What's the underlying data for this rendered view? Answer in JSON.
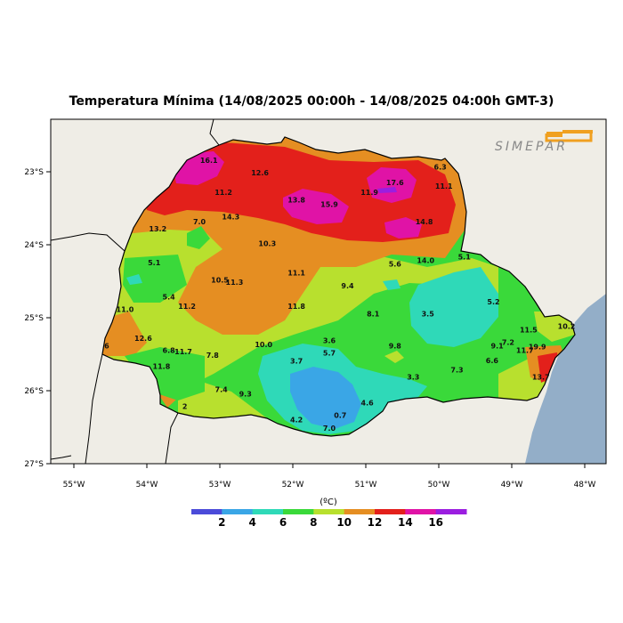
{
  "title": "Temperatura Mínima (14/08/2025 00:00h - 14/08/2025 04:00h GMT-3)",
  "logo_text": "SIMEPAR",
  "colors": {
    "ocean": "#93aec8",
    "land_outside": "#efede6",
    "border": "#000000",
    "bins": [
      "#4b4bd9",
      "#3aa6e6",
      "#2fd9b8",
      "#3ad93a",
      "#b8e02e",
      "#e58e22",
      "#e3201b",
      "#e013a6",
      "#9b1ee0"
    ]
  },
  "x_ticks": [
    "55°W",
    "54°W",
    "53°W",
    "52°W",
    "51°W",
    "50°W",
    "49°W",
    "48°W"
  ],
  "y_ticks": [
    "23°S",
    "24°S",
    "25°S",
    "26°S",
    "27°S"
  ],
  "colorbar": {
    "unit": "(ºC)",
    "labels": [
      "2",
      "4",
      "6",
      "8",
      "10",
      "12",
      "14",
      "16"
    ]
  },
  "map_values": [
    {
      "t": "16.1",
      "lon": -53.15,
      "lat": -22.88
    },
    {
      "t": "12.6",
      "lon": -52.45,
      "lat": -23.05
    },
    {
      "t": "11.2",
      "lon": -52.95,
      "lat": -23.32
    },
    {
      "t": "13.8",
      "lon": -51.95,
      "lat": -23.42
    },
    {
      "t": "15.9",
      "lon": -51.5,
      "lat": -23.48
    },
    {
      "t": "11.9",
      "lon": -50.95,
      "lat": -23.32
    },
    {
      "t": "17.6",
      "lon": -50.6,
      "lat": -23.18
    },
    {
      "t": "6.3",
      "lon": -49.98,
      "lat": -22.97
    },
    {
      "t": "11.1",
      "lon": -49.93,
      "lat": -23.23
    },
    {
      "t": "14.3",
      "lon": -52.85,
      "lat": -23.65
    },
    {
      "t": "14.8",
      "lon": -50.2,
      "lat": -23.72
    },
    {
      "t": "13.2",
      "lon": -53.85,
      "lat": -23.82
    },
    {
      "t": "7.0",
      "lon": -53.28,
      "lat": -23.72
    },
    {
      "t": "10.3",
      "lon": -52.35,
      "lat": -24.02
    },
    {
      "t": "14.0",
      "lon": -50.18,
      "lat": -24.25
    },
    {
      "t": "5.6",
      "lon": -50.6,
      "lat": -24.3
    },
    {
      "t": "5.1",
      "lon": -49.65,
      "lat": -24.2
    },
    {
      "t": "5.1",
      "lon": -53.9,
      "lat": -24.28
    },
    {
      "t": "11.1",
      "lon": -51.95,
      "lat": -24.42
    },
    {
      "t": "10.5",
      "lon": -53.0,
      "lat": -24.52
    },
    {
      "t": "11.3",
      "lon": -52.8,
      "lat": -24.55
    },
    {
      "t": "9.4",
      "lon": -51.25,
      "lat": -24.6
    },
    {
      "t": "5.4",
      "lon": -53.7,
      "lat": -24.75
    },
    {
      "t": "11.2",
      "lon": -53.45,
      "lat": -24.88
    },
    {
      "t": "11.8",
      "lon": -51.95,
      "lat": -24.88
    },
    {
      "t": "11.0",
      "lon": -54.3,
      "lat": -24.92
    },
    {
      "t": "8.1",
      "lon": -50.9,
      "lat": -24.98
    },
    {
      "t": "3.5",
      "lon": -50.15,
      "lat": -24.98
    },
    {
      "t": "5.2",
      "lon": -49.25,
      "lat": -24.82
    },
    {
      "t": "11.5",
      "lon": -48.77,
      "lat": -25.2
    },
    {
      "t": "10.2",
      "lon": -48.25,
      "lat": -25.15
    },
    {
      "t": "12.6",
      "lon": -54.05,
      "lat": -25.32
    },
    {
      "t": "6",
      "lon": -54.55,
      "lat": -25.42
    },
    {
      "t": "6.8",
      "lon": -53.7,
      "lat": -25.48
    },
    {
      "t": "11.7",
      "lon": -53.5,
      "lat": -25.5
    },
    {
      "t": "7.8",
      "lon": -53.1,
      "lat": -25.55
    },
    {
      "t": "10.0",
      "lon": -52.4,
      "lat": -25.4
    },
    {
      "t": "3.6",
      "lon": -51.5,
      "lat": -25.35
    },
    {
      "t": "5.7",
      "lon": -51.5,
      "lat": -25.52
    },
    {
      "t": "9.8",
      "lon": -50.6,
      "lat": -25.42
    },
    {
      "t": "9.1",
      "lon": -49.2,
      "lat": -25.42
    },
    {
      "t": "7.2",
      "lon": -49.05,
      "lat": -25.37
    },
    {
      "t": "11.7",
      "lon": -48.82,
      "lat": -25.48
    },
    {
      "t": "19.9",
      "lon": -48.65,
      "lat": -25.43
    },
    {
      "t": "6.6",
      "lon": -49.27,
      "lat": -25.62
    },
    {
      "t": "11.8",
      "lon": -53.8,
      "lat": -25.7
    },
    {
      "t": "3.7",
      "lon": -51.95,
      "lat": -25.63
    },
    {
      "t": "7.3",
      "lon": -49.75,
      "lat": -25.75
    },
    {
      "t": "13.7",
      "lon": -48.6,
      "lat": -25.85
    },
    {
      "t": "3.3",
      "lon": -50.35,
      "lat": -25.85
    },
    {
      "t": "7.4",
      "lon": -52.98,
      "lat": -26.02
    },
    {
      "t": "9.3",
      "lon": -52.65,
      "lat": -26.08
    },
    {
      "t": "4.6",
      "lon": -50.98,
      "lat": -26.2
    },
    {
      "t": "0.7",
      "lon": -51.35,
      "lat": -26.37
    },
    {
      "t": "4.2",
      "lon": -51.95,
      "lat": -26.43
    },
    {
      "t": "7.0",
      "lon": -51.5,
      "lat": -26.55
    },
    {
      "t": "2",
      "lon": -53.48,
      "lat": -26.25
    }
  ]
}
